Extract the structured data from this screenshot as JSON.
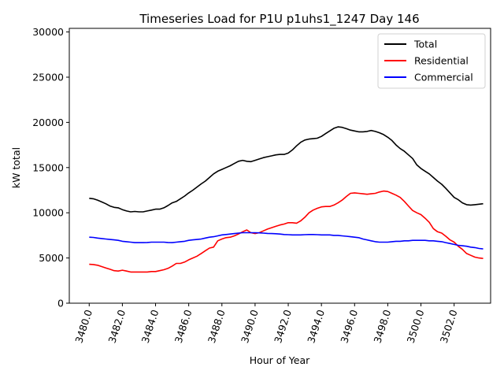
{
  "chart_data": {
    "type": "line",
    "title": "Timeseries Load for P1U p1uhs1_1247  Day 146",
    "xlabel": "Hour of Year",
    "ylabel": "kW total",
    "xlim": [
      3478.8,
      3504.2
    ],
    "ylim": [
      0,
      30400
    ],
    "xticks": [
      3480,
      3482,
      3484,
      3486,
      3488,
      3490,
      3492,
      3494,
      3496,
      3498,
      3500,
      3502
    ],
    "xtick_labels": [
      "3480.0",
      "3482.0",
      "3484.0",
      "3486.0",
      "3488.0",
      "3490.0",
      "3492.0",
      "3494.0",
      "3496.0",
      "3498.0",
      "3500.0",
      "3502.0"
    ],
    "yticks": [
      0,
      5000,
      10000,
      15000,
      20000,
      25000,
      30000
    ],
    "ytick_labels": [
      "0",
      "5000",
      "10000",
      "15000",
      "20000",
      "25000",
      "30000"
    ],
    "grid": false,
    "legend": "top-right",
    "x": [
      3480.0,
      3480.25,
      3480.5,
      3480.75,
      3481.0,
      3481.25,
      3481.5,
      3481.75,
      3482.0,
      3482.25,
      3482.5,
      3482.75,
      3483.0,
      3483.25,
      3483.5,
      3483.75,
      3484.0,
      3484.25,
      3484.5,
      3484.75,
      3485.0,
      3485.25,
      3485.5,
      3485.75,
      3486.0,
      3486.25,
      3486.5,
      3486.75,
      3487.0,
      3487.25,
      3487.5,
      3487.75,
      3488.0,
      3488.25,
      3488.5,
      3488.75,
      3489.0,
      3489.25,
      3489.5,
      3489.75,
      3490.0,
      3490.25,
      3490.5,
      3490.75,
      3491.0,
      3491.25,
      3491.5,
      3491.75,
      3492.0,
      3492.25,
      3492.5,
      3492.75,
      3493.0,
      3493.25,
      3493.5,
      3493.75,
      3494.0,
      3494.25,
      3494.5,
      3494.75,
      3495.0,
      3495.25,
      3495.5,
      3495.75,
      3496.0,
      3496.25,
      3496.5,
      3496.75,
      3497.0,
      3497.25,
      3497.5,
      3497.75,
      3498.0,
      3498.25,
      3498.5,
      3498.75,
      3499.0,
      3499.25,
      3499.5,
      3499.75,
      3500.0,
      3500.25,
      3500.5,
      3500.75,
      3501.0,
      3501.25,
      3501.5,
      3501.75,
      3502.0,
      3502.25,
      3502.5,
      3502.75,
      3503.0,
      3503.25,
      3503.5,
      3503.75
    ],
    "series": [
      {
        "name": "Total",
        "color": "#000000",
        "values": [
          11600,
          11550,
          11400,
          11200,
          11000,
          10750,
          10600,
          10550,
          10350,
          10200,
          10100,
          10150,
          10100,
          10100,
          10200,
          10300,
          10400,
          10400,
          10550,
          10800,
          11100,
          11250,
          11550,
          11850,
          12200,
          12500,
          12850,
          13200,
          13500,
          13900,
          14300,
          14600,
          14800,
          15000,
          15200,
          15450,
          15700,
          15800,
          15700,
          15650,
          15800,
          15950,
          16100,
          16200,
          16300,
          16400,
          16450,
          16450,
          16600,
          16950,
          17400,
          17800,
          18050,
          18150,
          18200,
          18250,
          18450,
          18750,
          19050,
          19350,
          19500,
          19450,
          19300,
          19150,
          19050,
          18950,
          18950,
          19000,
          19100,
          19000,
          18850,
          18650,
          18350,
          18000,
          17500,
          17100,
          16800,
          16400,
          16000,
          15300,
          14900,
          14600,
          14300,
          13900,
          13500,
          13150,
          12700,
          12200,
          11700,
          11450,
          11100,
          10900,
          10850,
          10900,
          10950,
          11000
        ],
        "values_note": "",
        "display_count": 96
      },
      {
        "name": "Residential",
        "color": "#ff0000",
        "values": [
          4300,
          4280,
          4200,
          4050,
          3900,
          3750,
          3600,
          3550,
          3650,
          3550,
          3450,
          3450,
          3450,
          3450,
          3450,
          3500,
          3500,
          3600,
          3700,
          3850,
          4100,
          4400,
          4400,
          4550,
          4800,
          5000,
          5200,
          5500,
          5800,
          6100,
          6200,
          6900,
          7100,
          7250,
          7300,
          7450,
          7650,
          7900,
          8100,
          7800,
          7700,
          7800,
          8000,
          8200,
          8350,
          8500,
          8650,
          8750,
          8900,
          8900,
          8850,
          9100,
          9500,
          10000,
          10300,
          10500,
          10650,
          10700,
          10700,
          10850,
          11100,
          11400,
          11800,
          12150,
          12200,
          12150,
          12100,
          12050,
          12100,
          12150,
          12300,
          12400,
          12350,
          12150,
          11950,
          11700,
          11250,
          10750,
          10250,
          10000,
          9800,
          9400,
          8950,
          8250,
          7900,
          7750,
          7400,
          7000,
          6750,
          6300,
          5950,
          5500,
          5300,
          5100,
          5000,
          4950
        ],
        "display_count": 96
      },
      {
        "name": "Commercial",
        "color": "#0000ff",
        "values": [
          7300,
          7270,
          7200,
          7150,
          7100,
          7050,
          7000,
          6950,
          6850,
          6800,
          6750,
          6700,
          6700,
          6700,
          6720,
          6750,
          6750,
          6750,
          6750,
          6720,
          6700,
          6750,
          6800,
          6850,
          6950,
          7000,
          7050,
          7100,
          7200,
          7300,
          7350,
          7450,
          7550,
          7600,
          7650,
          7700,
          7750,
          7800,
          7800,
          7800,
          7800,
          7780,
          7750,
          7720,
          7700,
          7680,
          7650,
          7600,
          7580,
          7550,
          7550,
          7550,
          7580,
          7600,
          7600,
          7580,
          7550,
          7550,
          7550,
          7500,
          7500,
          7450,
          7400,
          7350,
          7300,
          7250,
          7100,
          7000,
          6900,
          6800,
          6750,
          6750,
          6750,
          6800,
          6850,
          6850,
          6900,
          6900,
          6950,
          6950,
          6950,
          6950,
          6900,
          6900,
          6850,
          6800,
          6700,
          6600,
          6500,
          6400,
          6350,
          6300,
          6200,
          6150,
          6050,
          6000
        ],
        "display_count": 96
      }
    ]
  }
}
